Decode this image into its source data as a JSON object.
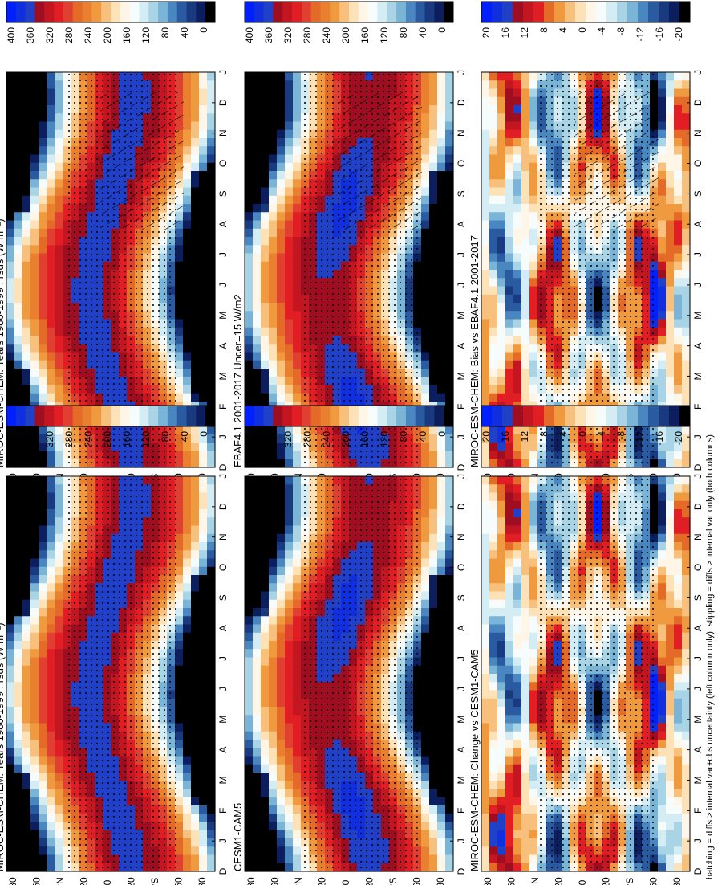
{
  "footnote": "hatching = diffs > internal var+obs uncertainty (left column only); stippling = diffs > internal var only (both columns)",
  "month_ticks": [
    "D",
    "J",
    "F",
    "M",
    "A",
    "M",
    "J",
    "J",
    "A",
    "S",
    "O",
    "N",
    "D",
    "J"
  ],
  "lat_ticks": [
    "80",
    "60",
    "°N",
    "20",
    "0",
    "20",
    "°S",
    "60",
    "80"
  ],
  "palettes": {
    "abs": [
      "#000000",
      "#0d1e5e",
      "#1a3a80",
      "#2a5aa0",
      "#4a86c0",
      "#7ab4d6",
      "#a8d4e6",
      "#d4ecf4",
      "#f6fbfc",
      "#fff6e8",
      "#fde2b8",
      "#f7c07c",
      "#f09a40",
      "#e88030",
      "#e46a28",
      "#e04030",
      "#e01e24",
      "#c41620",
      "#9e0e20",
      "#2040c8",
      "#1030e0",
      "#0020ff"
    ],
    "diff": [
      "#000000",
      "#0d1e5e",
      "#1a3a80",
      "#2a5aa0",
      "#4a86c0",
      "#7ab4d6",
      "#a8d4e6",
      "#d4ecf4",
      "#f6fbfc",
      "#fff6e8",
      "#fde2b8",
      "#f7c07c",
      "#f09a40",
      "#e46a28",
      "#e01e24",
      "#c41620",
      "#9e0e20",
      "#2040c8",
      "#1030e0",
      "#0020ff"
    ]
  },
  "chart_data": [
    {
      "type": "heatmap",
      "panel": "top-left",
      "title": "MIROC-ESM-CHEM: Years 1980-1999 : rsds (W m⁻²)",
      "hatching": true,
      "colorbar": {
        "ticks": [
          "400",
          "360",
          "320",
          "280",
          "240",
          "200",
          "160",
          "120",
          "80",
          "40",
          "0"
        ],
        "range": [
          0,
          420
        ]
      }
    },
    {
      "type": "heatmap",
      "panel": "middle-left",
      "title": "EBAF4.1 2001-2017 Uncer=15 W/m2",
      "hatching": true,
      "colorbar": {
        "ticks": [
          "400",
          "360",
          "320",
          "280",
          "240",
          "200",
          "160",
          "120",
          "80",
          "40",
          "0"
        ],
        "range": [
          0,
          420
        ]
      }
    },
    {
      "type": "heatmap",
      "panel": "bottom-left",
      "title": "MIROC-ESM-CHEM: Bias vs EBAF4.1 2001-2017",
      "hatching": true,
      "colorbar": {
        "ticks": [
          "20",
          "16",
          "12",
          "8",
          "4",
          "0",
          "-4",
          "-8",
          "-12",
          "-16",
          "-20"
        ],
        "range": [
          -22,
          22
        ]
      }
    },
    {
      "type": "heatmap",
      "panel": "top-right",
      "title": "MIROC-ESM-CHEM: Years 1980-1999 : rsds (W m⁻²)",
      "hatching": false,
      "colorbar": {
        "ticks": [
          "400",
          "360",
          "320",
          "280",
          "240",
          "200",
          "160",
          "120",
          "80",
          "40",
          "0"
        ],
        "range": [
          0,
          420
        ]
      }
    },
    {
      "type": "heatmap",
      "panel": "middle-right",
      "title": "CESM1-CAM5",
      "hatching": false,
      "colorbar": {
        "ticks": [
          "400",
          "360",
          "320",
          "280",
          "240",
          "200",
          "160",
          "120",
          "80",
          "40",
          "0"
        ],
        "range": [
          0,
          420
        ]
      }
    },
    {
      "type": "heatmap",
      "panel": "bottom-right",
      "title": "MIROC-ESM-CHEM: Change vs CESM1-CAM5",
      "hatching": false,
      "colorbar": {
        "ticks": [
          "20",
          "16",
          "12",
          "8",
          "4",
          "0",
          "-4",
          "-8",
          "-12",
          "-16",
          "-20"
        ],
        "range": [
          -22,
          22
        ]
      }
    }
  ]
}
